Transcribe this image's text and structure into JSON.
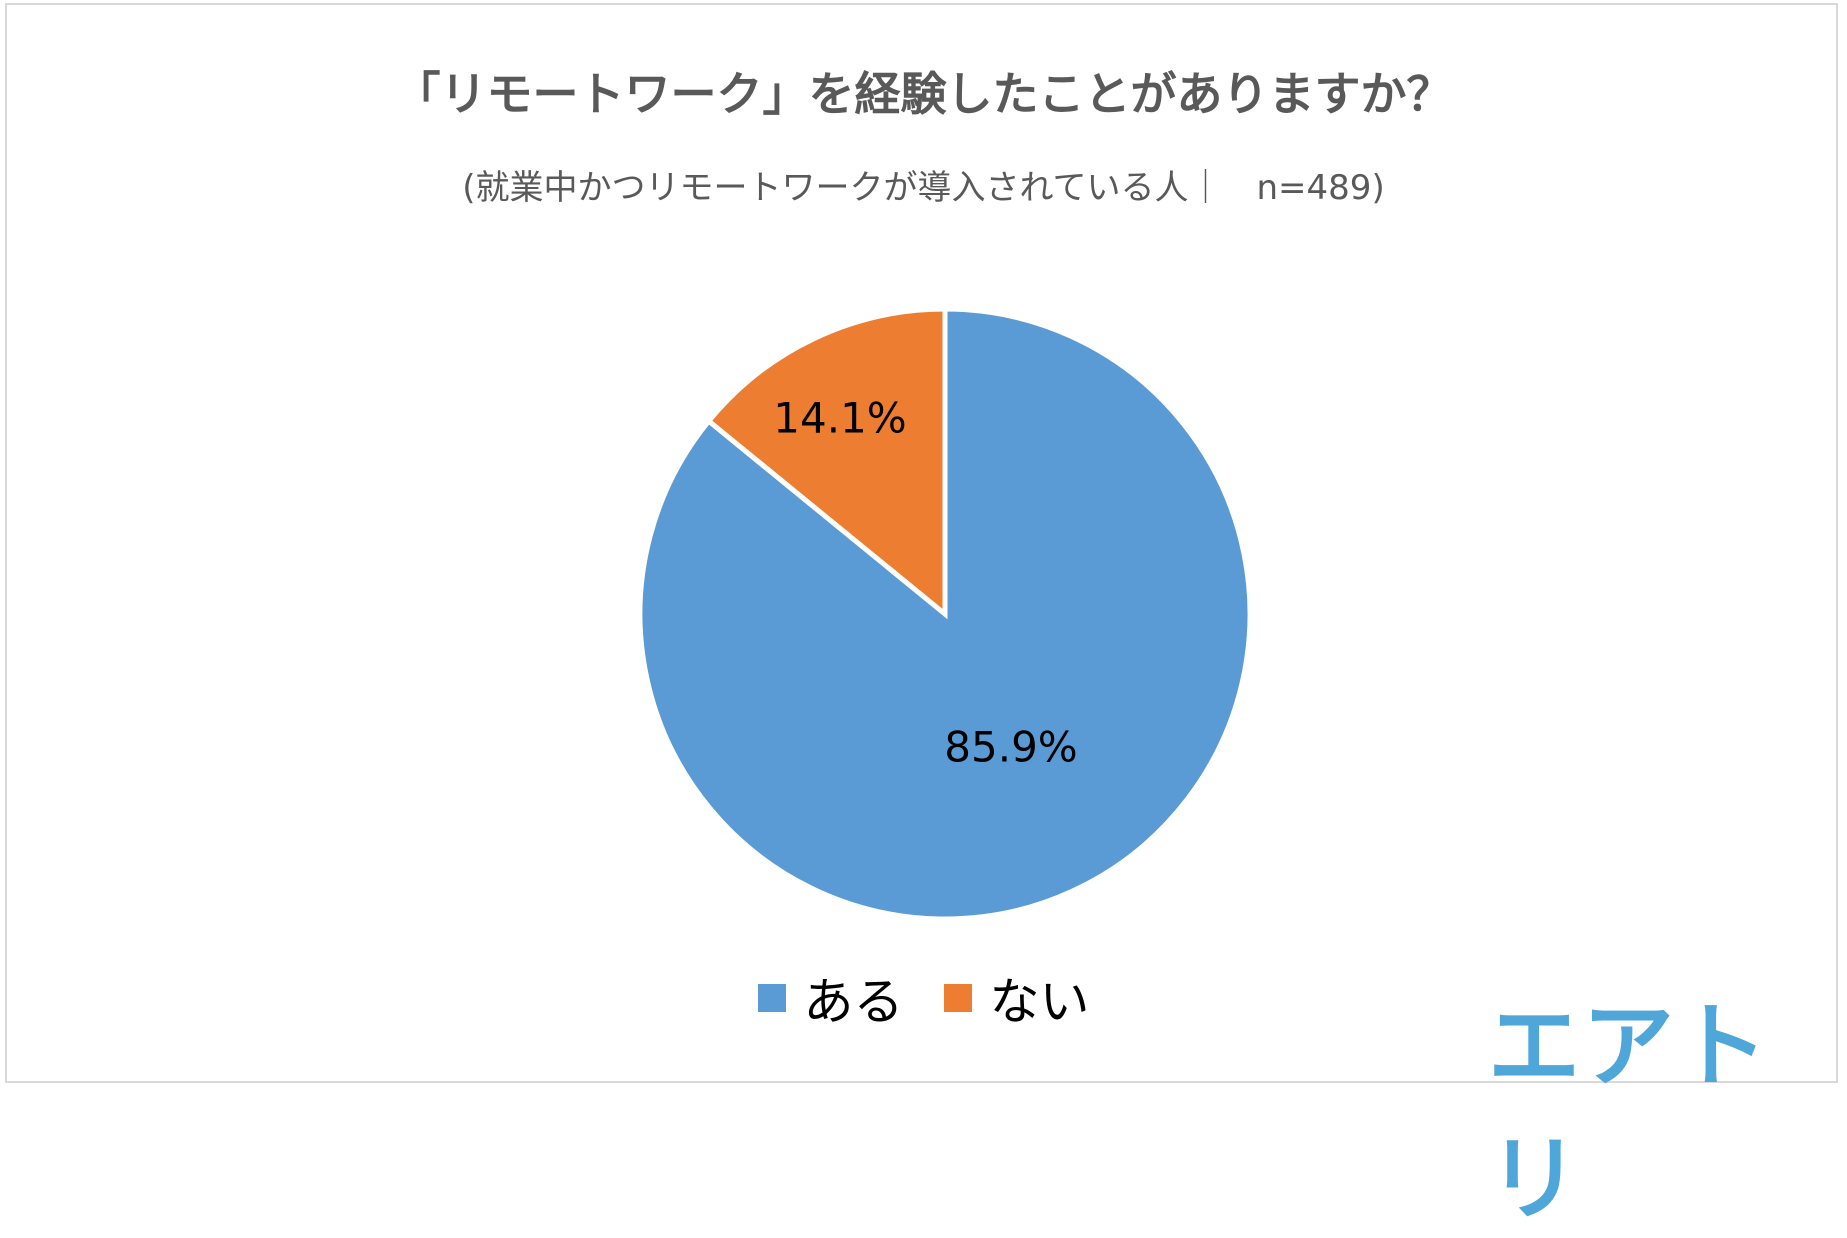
{
  "chart_data": {
    "type": "pie",
    "title": "「リモートワーク」を経験したことがありますか？",
    "subtitle": "(就業中かつリモートワークが導入されている人｜　n=489)",
    "categories": [
      "ある",
      "ない"
    ],
    "values": [
      85.9,
      14.1
    ],
    "labels": [
      "85.9%",
      "14.1%"
    ],
    "colors": [
      "#5b9bd5",
      "#ed7d31"
    ],
    "start": "12 o'clock, clockwise",
    "legend_position": "bottom"
  },
  "logo": {
    "text": "エアトリ",
    "color": "#4ea6d9"
  }
}
